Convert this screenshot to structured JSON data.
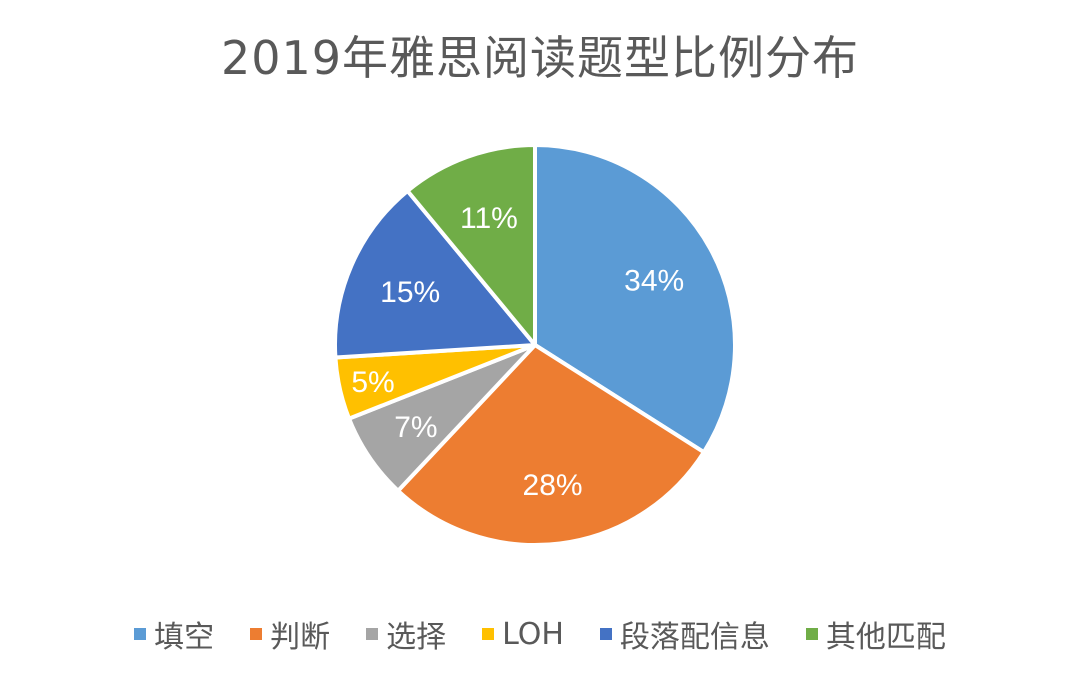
{
  "chart_data": {
    "type": "pie",
    "title": "2019年雅思阅读题型比例分布",
    "start_angle": "12 o'clock",
    "direction": "clockwise",
    "legend_position": "bottom",
    "slices": [
      {
        "label": "填空",
        "value": 34,
        "display": "34%",
        "color": "#5B9BD5"
      },
      {
        "label": "判断",
        "value": 28,
        "display": "28%",
        "color": "#ED7D31"
      },
      {
        "label": "选择",
        "value": 7,
        "display": "7%",
        "color": "#A5A5A5"
      },
      {
        "label": "LOH",
        "value": 5,
        "display": "5%",
        "color": "#FFC000"
      },
      {
        "label": "段落配信息",
        "value": 15,
        "display": "15%",
        "color": "#4472C4"
      },
      {
        "label": "其他匹配",
        "value": 11,
        "display": "11%",
        "color": "#70AD47"
      }
    ]
  }
}
